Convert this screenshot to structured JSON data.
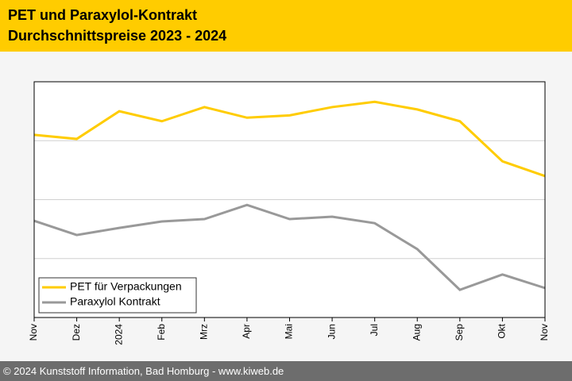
{
  "chart_data": {
    "type": "line",
    "title": "PET und Paraxylol-Kontrakt",
    "subtitle": "Durchschnittspreise 2023 - 2024",
    "categories": [
      "Nov",
      "Dez",
      "2024",
      "Feb",
      "Mrz",
      "Apr",
      "Mai",
      "Jun",
      "Jul",
      "Aug",
      "Sep",
      "Okt",
      "Nov"
    ],
    "series": [
      {
        "name": "PET für Verpackungen",
        "color": "#ffcc00",
        "values": [
          3.1,
          3.03,
          3.5,
          3.33,
          3.57,
          3.39,
          3.43,
          3.57,
          3.66,
          3.53,
          3.33,
          2.65,
          2.4
        ]
      },
      {
        "name": "Paraxylol Kontrakt",
        "color": "#999999",
        "values": [
          1.64,
          1.4,
          1.52,
          1.63,
          1.67,
          1.91,
          1.67,
          1.71,
          1.6,
          1.16,
          0.47,
          0.73,
          0.5
        ]
      }
    ],
    "ylim": [
      0,
      4
    ],
    "yticks": [
      1,
      2,
      3
    ],
    "grid": true,
    "legend": "lower-left"
  },
  "footer": "© 2024 Kunststoff Information, Bad Homburg - www.kiweb.de"
}
